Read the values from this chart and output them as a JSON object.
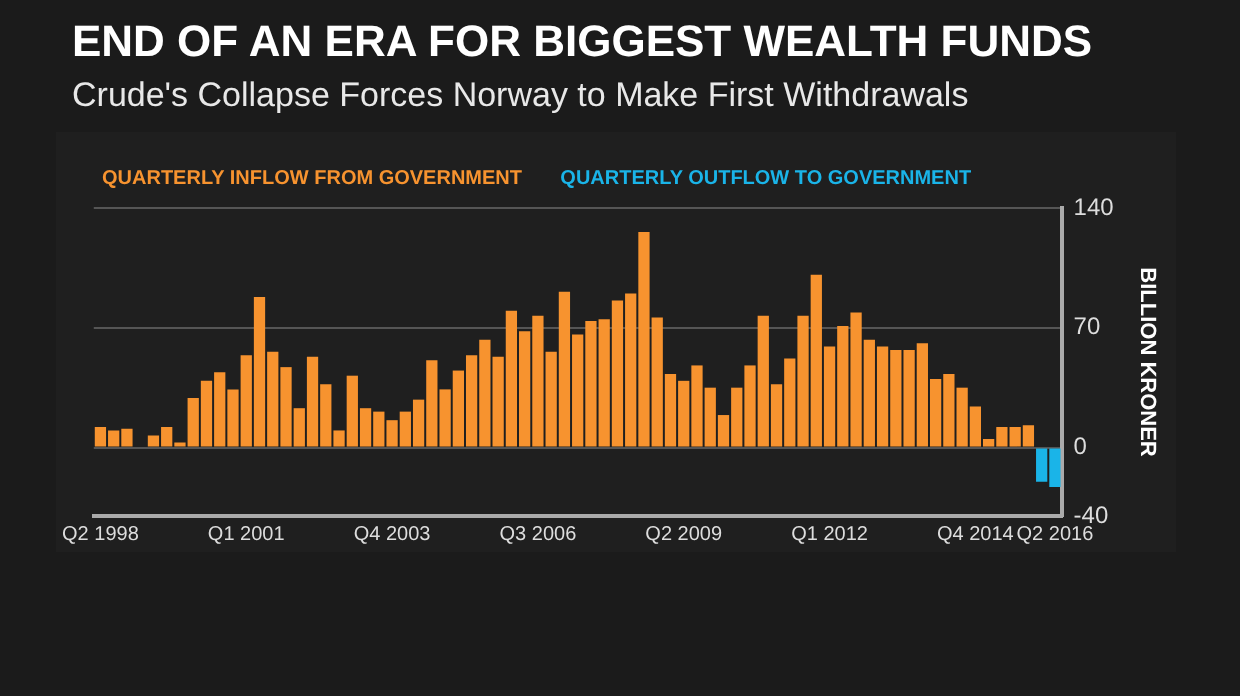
{
  "chart_data": {
    "type": "bar",
    "title": "END OF AN ERA FOR BIGGEST WEALTH FUNDS",
    "subtitle": "Crude's Collapse Forces Norway to Make First Withdrawals",
    "ylabel": "BILLION KRONER",
    "categories": [
      "Q2 1998",
      null,
      null,
      null,
      null,
      null,
      null,
      null,
      null,
      null,
      null,
      "Q1 2001",
      null,
      null,
      null,
      null,
      null,
      null,
      null,
      null,
      null,
      null,
      "Q4 2003",
      null,
      null,
      null,
      null,
      null,
      null,
      null,
      null,
      null,
      null,
      "Q3 2006",
      null,
      null,
      null,
      null,
      null,
      null,
      null,
      null,
      null,
      null,
      "Q2 2009",
      null,
      null,
      null,
      null,
      null,
      null,
      null,
      null,
      null,
      null,
      "Q1 2012",
      null,
      null,
      null,
      null,
      null,
      null,
      null,
      null,
      null,
      null,
      "Q4 2014",
      null,
      null,
      null,
      null,
      null,
      "Q2 2016"
    ],
    "series": [
      {
        "name": "QUARTERLY INFLOW FROM GOVERNMENT",
        "color": "#f7932f",
        "values": [
          12,
          10,
          11,
          0,
          7,
          12,
          3,
          29,
          39,
          44,
          34,
          54,
          88,
          56,
          47,
          23,
          53,
          37,
          10,
          42,
          23,
          21,
          16,
          21,
          28,
          51,
          34,
          45,
          54,
          63,
          53,
          80,
          68,
          77,
          56,
          91,
          66,
          74,
          75,
          86,
          90,
          126,
          76,
          43,
          39,
          48,
          35,
          19,
          35,
          48,
          77,
          37,
          52,
          77,
          101,
          59,
          71,
          79,
          63,
          59,
          57,
          57,
          61,
          40,
          43,
          35,
          24,
          5,
          12,
          12,
          13,
          null,
          null
        ]
      },
      {
        "name": "QUARTERLY OUTFLOW TO GOVERNMENT",
        "color": "#1ab4e8",
        "values": [
          null,
          null,
          null,
          null,
          null,
          null,
          null,
          null,
          null,
          null,
          null,
          null,
          null,
          null,
          null,
          null,
          null,
          null,
          null,
          null,
          null,
          null,
          null,
          null,
          null,
          null,
          null,
          null,
          null,
          null,
          null,
          null,
          null,
          null,
          null,
          null,
          null,
          null,
          null,
          null,
          null,
          null,
          null,
          null,
          null,
          null,
          null,
          null,
          null,
          null,
          null,
          null,
          null,
          null,
          null,
          null,
          null,
          null,
          null,
          null,
          null,
          null,
          null,
          null,
          null,
          null,
          null,
          null,
          null,
          null,
          null,
          -20,
          -23
        ]
      }
    ],
    "stacked": true,
    "ylim": [
      -40,
      140
    ],
    "yticks": [
      -40,
      0,
      70,
      140
    ],
    "grid": "y",
    "legend": "top left"
  }
}
